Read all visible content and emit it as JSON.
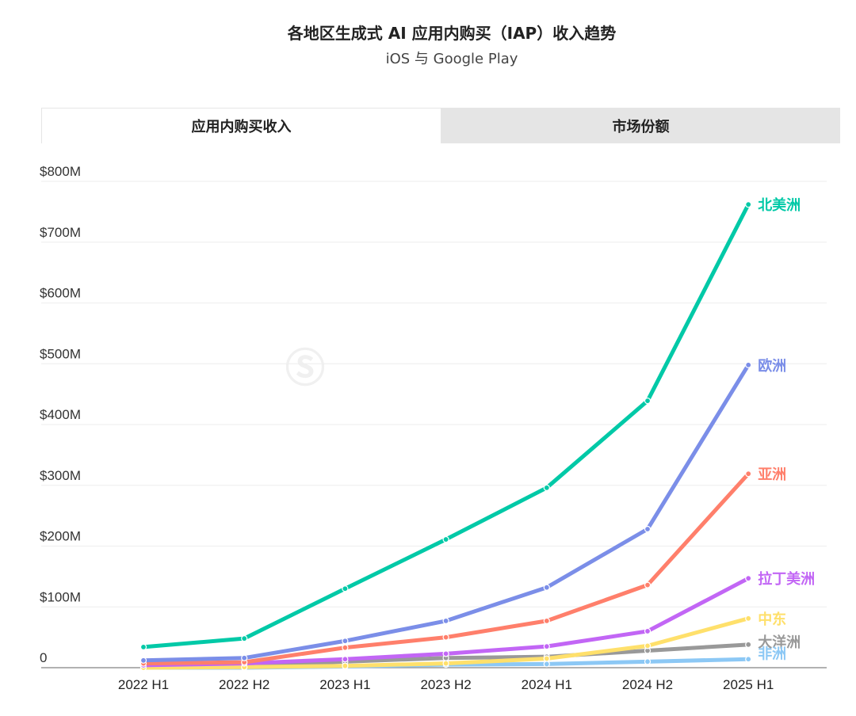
{
  "header": {
    "title": "各地区生成式 AI 应用内购买（IAP）收入趋势",
    "subtitle": "iOS 与 Google Play"
  },
  "tabs": [
    {
      "label": "应用内购买收入",
      "active": true
    },
    {
      "label": "市场份额",
      "active": false
    }
  ],
  "watermark": "SensorTower",
  "chart_data": {
    "type": "line",
    "categories": [
      "2022 H1",
      "2022 H2",
      "2023 H1",
      "2023 H2",
      "2024 H1",
      "2024 H2",
      "2025 H1"
    ],
    "yticks": [
      {
        "v": 0,
        "label": "0"
      },
      {
        "v": 100,
        "label": "$100M"
      },
      {
        "v": 200,
        "label": "$200M"
      },
      {
        "v": 300,
        "label": "$300M"
      },
      {
        "v": 400,
        "label": "$400M"
      },
      {
        "v": 500,
        "label": "$500M"
      },
      {
        "v": 600,
        "label": "$600M"
      },
      {
        "v": 700,
        "label": "$700M"
      },
      {
        "v": 800,
        "label": "$800M"
      }
    ],
    "ylim": [
      0,
      800
    ],
    "grid": true,
    "legend": "end-of-line labels",
    "series": [
      {
        "name": "北美洲",
        "color": "#00c9a7",
        "values": [
          34,
          48,
          130,
          211,
          296,
          439,
          762
        ]
      },
      {
        "name": "欧洲",
        "color": "#7b8ee8",
        "values": [
          12,
          16,
          44,
          77,
          132,
          228,
          498
        ]
      },
      {
        "name": "亚洲",
        "color": "#ff7f6b",
        "values": [
          7,
          9,
          33,
          50,
          77,
          136,
          319
        ]
      },
      {
        "name": "拉丁美洲",
        "color": "#c266f5",
        "values": [
          4,
          7,
          14,
          23,
          35,
          60,
          147
        ]
      },
      {
        "name": "中东",
        "color": "#ffe06b",
        "values": [
          0,
          1,
          3,
          7,
          15,
          36,
          81
        ]
      },
      {
        "name": "大洋洲",
        "color": "#999999",
        "values": [
          2,
          3,
          10,
          16,
          18,
          28,
          38
        ]
      },
      {
        "name": "非洲",
        "color": "#8cc8f5",
        "values": [
          0,
          0,
          2,
          5,
          6,
          10,
          14
        ]
      }
    ],
    "label_offsets": [
      0,
      0,
      0,
      0,
      0,
      -4,
      -8
    ]
  }
}
